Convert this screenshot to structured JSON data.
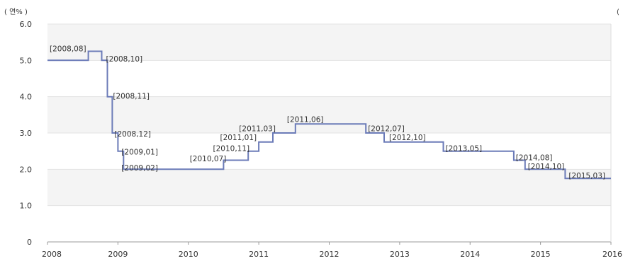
{
  "chart_data": {
    "type": "line",
    "title": "",
    "xlabel": "",
    "ylabel": "",
    "y_unit_label": "( 연% )",
    "right_edge_label": "(",
    "xlim": [
      2008,
      2016
    ],
    "ylim": [
      0,
      6.0
    ],
    "y_ticks": [
      {
        "value": 0,
        "label": "0"
      },
      {
        "value": 1,
        "label": "1.0"
      },
      {
        "value": 2,
        "label": "2.0"
      },
      {
        "value": 3,
        "label": "3.0"
      },
      {
        "value": 4,
        "label": "4.0"
      },
      {
        "value": 5,
        "label": "5.0"
      },
      {
        "value": 6,
        "label": "6.0"
      }
    ],
    "x_ticks": [
      {
        "value": 2008,
        "label": "2008"
      },
      {
        "value": 2009,
        "label": "2009"
      },
      {
        "value": 2010,
        "label": "2010"
      },
      {
        "value": 2011,
        "label": "2011"
      },
      {
        "value": 2012,
        "label": "2012"
      },
      {
        "value": 2013,
        "label": "2013"
      },
      {
        "value": 2014,
        "label": "2014"
      },
      {
        "value": 2015,
        "label": "2015"
      },
      {
        "value": 2016,
        "label": "2016"
      }
    ],
    "grid": true,
    "step": true,
    "line_color": "#6b7bb8",
    "band_color": "#f4f4f4",
    "series": [
      {
        "points": [
          {
            "x": 2008.0,
            "y": 5.0
          },
          {
            "x": 2008.58,
            "y": 5.25
          },
          {
            "x": 2008.77,
            "y": 5.0
          },
          {
            "x": 2008.85,
            "y": 4.0
          },
          {
            "x": 2008.92,
            "y": 3.0
          },
          {
            "x": 2009.0,
            "y": 2.5
          },
          {
            "x": 2009.08,
            "y": 2.0
          },
          {
            "x": 2010.5,
            "y": 2.25
          },
          {
            "x": 2010.85,
            "y": 2.5
          },
          {
            "x": 2011.0,
            "y": 2.75
          },
          {
            "x": 2011.2,
            "y": 3.0
          },
          {
            "x": 2011.52,
            "y": 3.25
          },
          {
            "x": 2012.52,
            "y": 3.0
          },
          {
            "x": 2012.78,
            "y": 2.75
          },
          {
            "x": 2013.62,
            "y": 2.5
          },
          {
            "x": 2014.62,
            "y": 2.25
          },
          {
            "x": 2014.78,
            "y": 2.0
          },
          {
            "x": 2015.35,
            "y": 1.75
          },
          {
            "x": 2016.0,
            "y": 1.75
          }
        ]
      }
    ],
    "annotations": [
      {
        "text": "[2008,08]",
        "x": 2008.03,
        "y": 5.33
      },
      {
        "text": "[2008,10]",
        "x": 2008.83,
        "y": 5.05
      },
      {
        "text": "[2008,11]",
        "x": 2008.93,
        "y": 4.02
      },
      {
        "text": "[2008,12]",
        "x": 2008.95,
        "y": 2.98
      },
      {
        "text": "[2009,01]",
        "x": 2009.05,
        "y": 2.48
      },
      {
        "text": "[2009,02]",
        "x": 2009.05,
        "y": 2.05
      },
      {
        "text": "[2010,07]",
        "x": 2010.02,
        "y": 2.3
      },
      {
        "text": "[2010,11]",
        "x": 2010.35,
        "y": 2.58
      },
      {
        "text": "[2011,01]",
        "x": 2010.45,
        "y": 2.88
      },
      {
        "text": "[2011,03]",
        "x": 2010.72,
        "y": 3.13
      },
      {
        "text": "[2011,06]",
        "x": 2011.4,
        "y": 3.38
      },
      {
        "text": "[2012,07]",
        "x": 2012.55,
        "y": 3.13
      },
      {
        "text": "[2012,10]",
        "x": 2012.85,
        "y": 2.88
      },
      {
        "text": "[2013,05]",
        "x": 2013.65,
        "y": 2.58
      },
      {
        "text": "[2014,08]",
        "x": 2014.65,
        "y": 2.33
      },
      {
        "text": "[2014,10]",
        "x": 2014.82,
        "y": 2.08
      },
      {
        "text": "[2015,03]",
        "x": 2015.4,
        "y": 1.83
      }
    ]
  }
}
